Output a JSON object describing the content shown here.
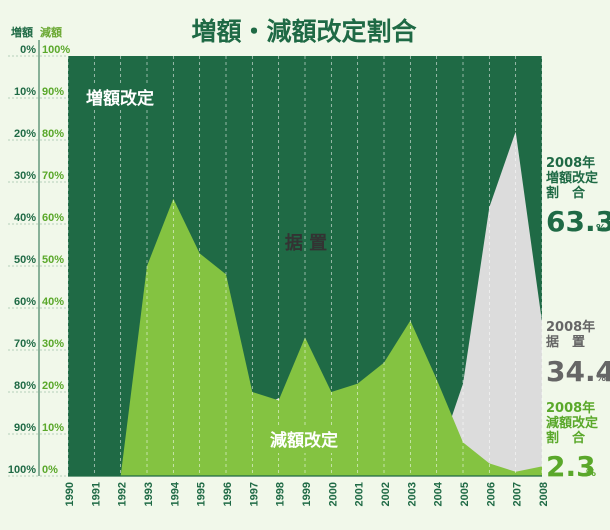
{
  "chart_data": {
    "type": "area",
    "title": "増額・減額改定割合",
    "left_axis_header": "増額",
    "right_axis_header": "減額",
    "left_ticks": [
      "0%",
      "10%",
      "20%",
      "30%",
      "40%",
      "50%",
      "60%",
      "70%",
      "80%",
      "90%",
      "100%"
    ],
    "right_ticks": [
      "100%",
      "90%",
      "80%",
      "70%",
      "60%",
      "50%",
      "40%",
      "30%",
      "20%",
      "10%",
      "0%"
    ],
    "x": [
      "1990",
      "1991",
      "1992",
      "1993",
      "1994",
      "1995",
      "1996",
      "1997",
      "1998",
      "1999",
      "2000",
      "2001",
      "2002",
      "2003",
      "2004",
      "2005",
      "2006",
      "2007",
      "2008"
    ],
    "series": [
      {
        "name": "増額改定",
        "values": [
          100,
          100,
          100,
          76,
          92,
          92.5,
          92,
          84,
          81.5,
          89.5,
          93,
          91.5,
          93.5,
          96,
          96.5,
          78,
          36,
          18,
          63.3
        ]
      },
      {
        "name": "据置",
        "values": [
          0,
          0,
          0,
          24,
          8,
          7.5,
          8,
          16,
          18.5,
          10.5,
          7,
          8.5,
          6.5,
          4,
          3.5,
          22,
          64,
          82,
          34.4
        ]
      },
      {
        "name": "減額改定",
        "values": [
          0,
          0,
          0,
          50,
          66,
          53,
          48,
          20,
          18,
          33,
          20,
          22,
          27,
          37,
          23,
          8,
          3,
          1,
          2.3
        ]
      }
    ],
    "ylim": [
      0,
      100
    ],
    "colors": {
      "increase": "#1f6a45",
      "flat": "#dcdcdc",
      "decrease": "#84c341",
      "background": "#f1f8ea"
    }
  },
  "labels": {
    "increase": "増額改定",
    "flat": "据 置",
    "decrease": "減額改定"
  },
  "annotations": [
    {
      "year": "2008年",
      "line1": "増額改定",
      "line2": "割　合",
      "value": "63.3",
      "unit": "%"
    },
    {
      "year": "2008年",
      "line1": "据　置",
      "line2": "",
      "value": "34.4",
      "unit": "%"
    },
    {
      "year": "2008年",
      "line1": "減額改定",
      "line2": "割　合",
      "value": "2.3",
      "unit": "%"
    }
  ]
}
